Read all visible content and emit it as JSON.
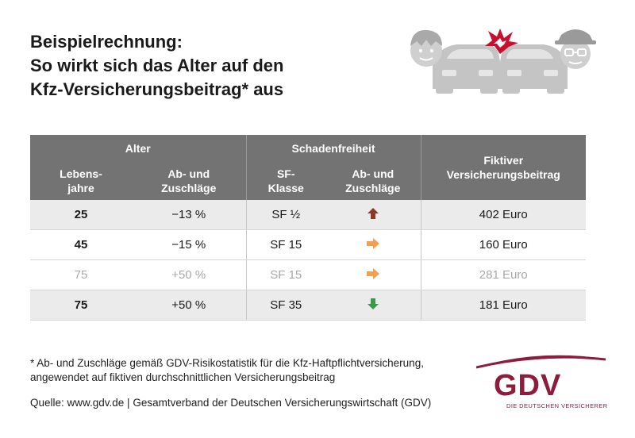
{
  "title": {
    "line1": "Beispielrechnung:",
    "line2": "So wirkt sich das Alter auf den",
    "line3": "Kfz-Versicherungsbeitrag* aus"
  },
  "illustration": {
    "icon": "car-crash-icon"
  },
  "table": {
    "group_headers": {
      "alter": "Alter",
      "schadenfreiheit": "Schadenfreiheit"
    },
    "columns": {
      "lebensjahre_1": "Lebens-",
      "lebensjahre_2": "jahre",
      "ab_zu_1": "Ab- und",
      "ab_zu_2": "Zuschläge",
      "sf_1": "SF-",
      "sf_2": "Klasse",
      "sf_ab_zu_1": "Ab- und",
      "sf_ab_zu_2": "Zuschläge",
      "beitrag_1": "Fiktiver",
      "beitrag_2": "Versicherungsbeitrag"
    },
    "rows": [
      {
        "age": "25",
        "age_adj": "−13 %",
        "sf_class": "SF ½",
        "sf_trend": "up",
        "premium": "402 Euro"
      },
      {
        "age": "45",
        "age_adj": "−15 %",
        "sf_class": "SF 15",
        "sf_trend": "right",
        "premium": "160 Euro"
      },
      {
        "age": "75",
        "age_adj": "+50 %",
        "sf_class": "SF 15",
        "sf_trend": "right",
        "premium": "281 Euro"
      },
      {
        "age": "75",
        "age_adj": "+50 %",
        "sf_class": "SF 35",
        "sf_trend": "down",
        "premium": "181 Euro"
      }
    ],
    "colors": {
      "up": "#8b3a2a",
      "right": "#f0a050",
      "down": "#3a9a4a",
      "header_bg": "#737373"
    }
  },
  "footnote": {
    "line1": "* Ab- und Zuschläge gemäß GDV-Risikostatistik für die Kfz-Haftpflichtversicherung,",
    "line2": "angewendet auf fiktiven durchschnittlichen Versicherungsbeitrag"
  },
  "source": "Quelle: www.gdv.de | Gesamtverband der Deutschen Versicherungswirtschaft (GDV)",
  "logo": {
    "name": "GDV",
    "tagline": "DIE DEUTSCHEN VERSICHERER",
    "color": "#8c1d3c"
  }
}
